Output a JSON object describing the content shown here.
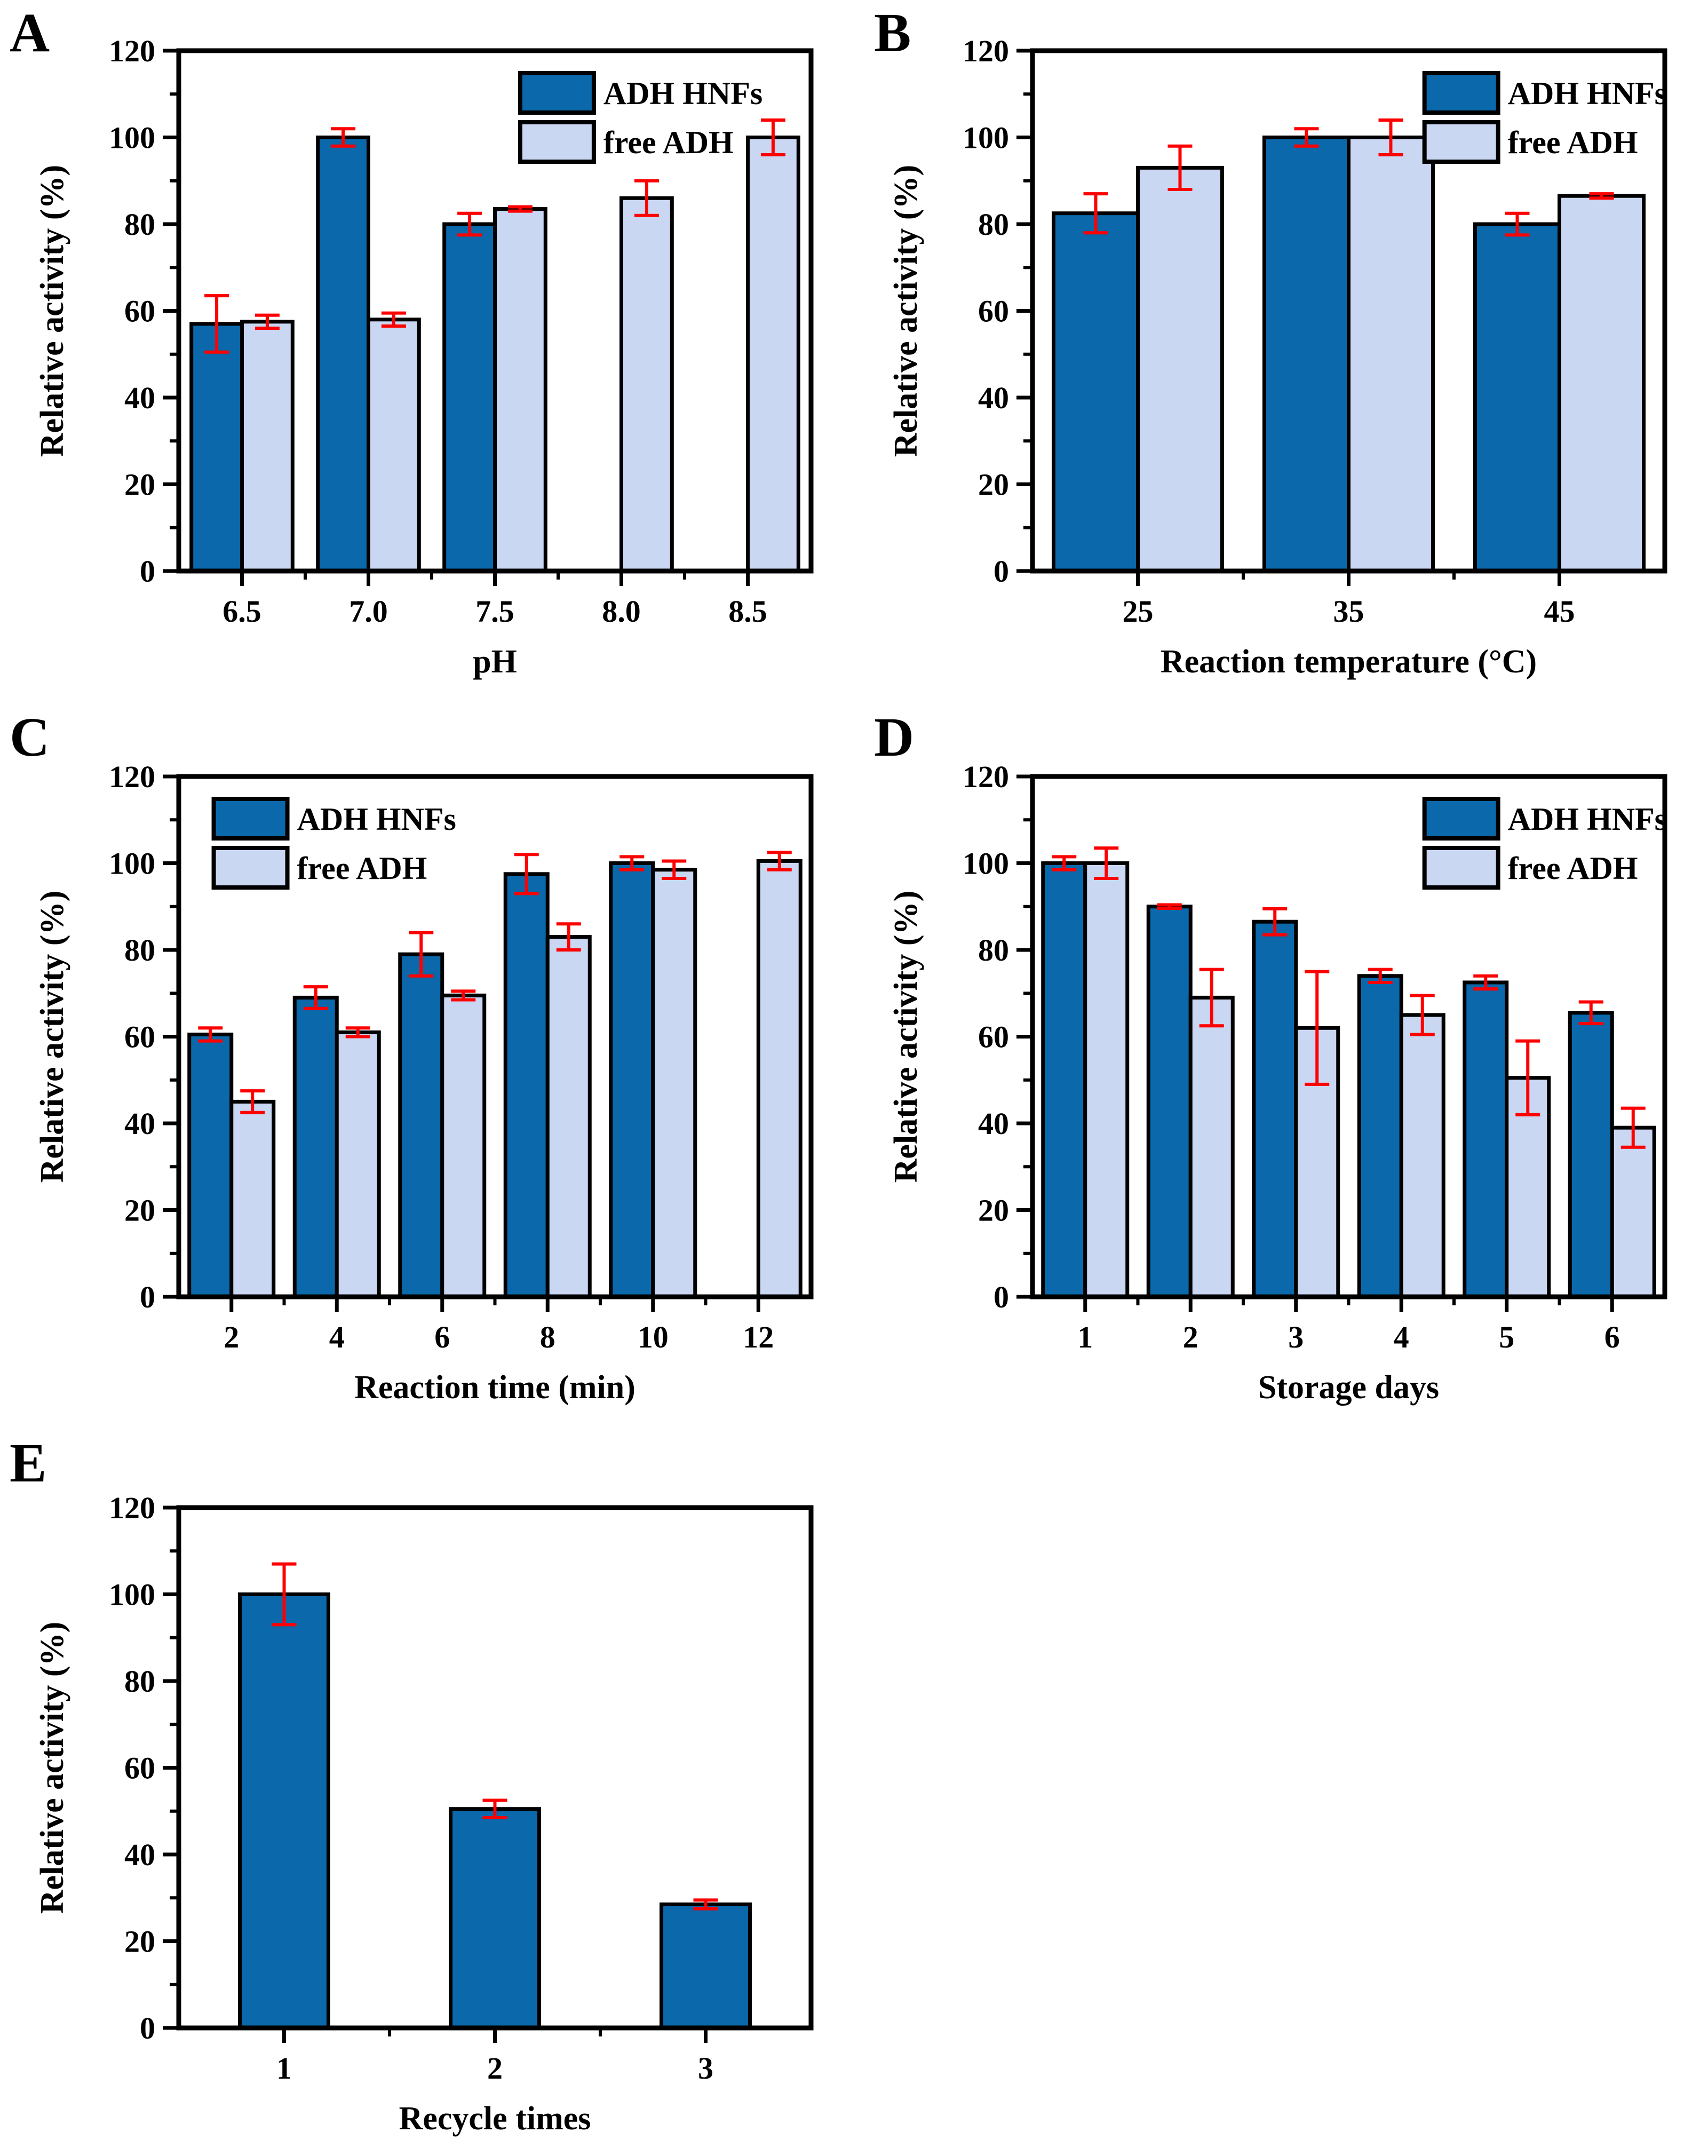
{
  "figure": {
    "background": "#ffffff",
    "description_colors": {
      "adh_hnfs_fill": "#0A68AB",
      "free_adh_fill": "#C9D7F3",
      "error_bar": "#FF0000",
      "axis_and_outline": "#000000"
    }
  },
  "panels": [
    {
      "letter": "A",
      "chart_data": {
        "type": "bar",
        "title": "",
        "xlabel": "pH",
        "ylabel": "Relative activity (%)",
        "ylim": [
          0,
          120
        ],
        "yticks": [
          0,
          20,
          40,
          60,
          80,
          100,
          120
        ],
        "yminorticks": [
          10,
          30,
          50,
          70,
          90,
          110
        ],
        "grid": false,
        "legend_position": "top-right",
        "legend_x_frac": 0.54,
        "categories": [
          "6.5",
          "7.0",
          "7.5",
          "8.0",
          "8.5"
        ],
        "series": [
          {
            "name": "ADH HNFs",
            "color": "#0A68AB",
            "values": [
              57,
              100,
              80,
              null,
              null
            ],
            "errors": [
              6.5,
              2,
              2.5,
              null,
              null
            ]
          },
          {
            "name": "free ADH",
            "color": "#C9D7F3",
            "values": [
              57.5,
              58,
              83.5,
              86,
              100
            ],
            "errors": [
              1.5,
              1.5,
              0.5,
              4,
              4
            ]
          }
        ]
      }
    },
    {
      "letter": "B",
      "chart_data": {
        "type": "bar",
        "title": "",
        "xlabel": "Reaction temperature (°C)",
        "ylabel": "Relative activity (%)",
        "ylim": [
          0,
          120
        ],
        "yticks": [
          0,
          20,
          40,
          60,
          80,
          100,
          120
        ],
        "yminorticks": [
          10,
          30,
          50,
          70,
          90,
          110
        ],
        "grid": false,
        "legend_position": "top-right",
        "legend_x_frac": 0.62,
        "categories": [
          "25",
          "35",
          "45"
        ],
        "series": [
          {
            "name": "ADH HNFs",
            "color": "#0A68AB",
            "values": [
              82.5,
              100,
              80
            ],
            "errors": [
              4.5,
              2,
              2.5
            ]
          },
          {
            "name": "free ADH",
            "color": "#C9D7F3",
            "values": [
              93,
              100,
              86.5
            ],
            "errors": [
              5,
              4,
              0.5
            ]
          }
        ]
      }
    },
    {
      "letter": "C",
      "chart_data": {
        "type": "bar",
        "title": "",
        "xlabel": "Reaction time (min)",
        "ylabel": "Relative activity (%)",
        "ylim": [
          0,
          120
        ],
        "yticks": [
          0,
          20,
          40,
          60,
          80,
          100,
          120
        ],
        "yminorticks": [
          10,
          30,
          50,
          70,
          90,
          110
        ],
        "grid": false,
        "legend_position": "top-left",
        "legend_x_frac": 0.03,
        "categories": [
          "2",
          "4",
          "6",
          "8",
          "10",
          "12"
        ],
        "series": [
          {
            "name": "ADH HNFs",
            "color": "#0A68AB",
            "values": [
              60.5,
              69,
              79,
              97.5,
              100,
              null
            ],
            "errors": [
              1.5,
              2.5,
              5,
              4.5,
              1.5,
              null
            ]
          },
          {
            "name": "free ADH",
            "color": "#C9D7F3",
            "values": [
              45,
              61,
              69.5,
              83,
              98.5,
              100.5
            ],
            "errors": [
              2.5,
              1,
              1,
              3,
              2,
              2
            ]
          }
        ]
      }
    },
    {
      "letter": "D",
      "chart_data": {
        "type": "bar",
        "title": "",
        "xlabel": "Storage days",
        "ylabel": "Relative activity (%)",
        "ylim": [
          0,
          120
        ],
        "yticks": [
          0,
          20,
          40,
          60,
          80,
          100,
          120
        ],
        "yminorticks": [
          10,
          30,
          50,
          70,
          90,
          110
        ],
        "grid": false,
        "legend_position": "top-right",
        "legend_x_frac": 0.62,
        "categories": [
          "1",
          "2",
          "3",
          "4",
          "5",
          "6"
        ],
        "series": [
          {
            "name": "ADH HNFs",
            "color": "#0A68AB",
            "values": [
              100,
              90,
              86.5,
              74,
              72.5,
              65.5
            ],
            "errors": [
              1.5,
              0.4,
              3,
              1.5,
              1.5,
              2.5
            ]
          },
          {
            "name": "free ADH",
            "color": "#C9D7F3",
            "values": [
              100,
              69,
              62,
              65,
              50.5,
              39
            ],
            "errors": [
              3.5,
              6.5,
              13,
              4.5,
              8.5,
              4.5
            ]
          }
        ]
      }
    },
    {
      "letter": "E",
      "chart_data": {
        "type": "bar",
        "title": "",
        "xlabel": "Recycle times",
        "ylabel": "Relative activity (%)",
        "ylim": [
          0,
          120
        ],
        "yticks": [
          0,
          20,
          40,
          60,
          80,
          100,
          120
        ],
        "yminorticks": [
          10,
          30,
          50,
          70,
          90,
          110
        ],
        "grid": false,
        "legend_position": "none",
        "legend_x_frac": 0,
        "categories": [
          "1",
          "2",
          "3"
        ],
        "series": [
          {
            "name": "ADH HNFs",
            "color": "#0A68AB",
            "values": [
              100,
              50.5,
              28.5
            ],
            "errors": [
              7,
              2,
              1
            ]
          }
        ]
      }
    }
  ]
}
